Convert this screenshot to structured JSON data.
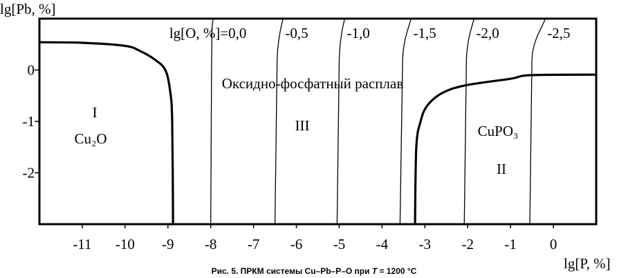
{
  "chart_data": {
    "type": "line",
    "title": "",
    "caption": {
      "prefix": "Рис. 5. ПРКМ системы Cu–Pb–P–O при ",
      "italic": "T",
      "suffix": " = 1200 °C"
    },
    "xlabel": "lg[P, %]",
    "ylabel": "lg[Pb, %]",
    "xlim": [
      -12,
      1
    ],
    "ylim": [
      -3,
      1
    ],
    "x_ticks": [
      -11,
      -10,
      -9,
      -8,
      -7,
      -6,
      -5,
      -4,
      -3,
      -2,
      -1,
      0
    ],
    "y_ticks": [
      0,
      -1,
      -2
    ],
    "grid": false,
    "phase_boundaries": [
      {
        "name": "Cu2O boundary",
        "points": [
          [
            -12,
            0.54
          ],
          [
            -11,
            0.53
          ],
          [
            -10,
            0.47
          ],
          [
            -9.65,
            0.37
          ],
          [
            -9.3,
            0.2
          ],
          [
            -9.06,
            0
          ],
          [
            -8.95,
            -0.4
          ],
          [
            -8.9,
            -1.0
          ],
          [
            -8.88,
            -3
          ]
        ]
      },
      {
        "name": "CuPO3 boundary",
        "points": [
          [
            -3.23,
            -3
          ],
          [
            -3.2,
            -1.5
          ],
          [
            -3.1,
            -1.0
          ],
          [
            -2.95,
            -0.7
          ],
          [
            -2.6,
            -0.45
          ],
          [
            -2.06,
            -0.3
          ],
          [
            -1.0,
            -0.17
          ],
          [
            -0.53,
            -0.1
          ],
          [
            1,
            -0.09
          ]
        ]
      }
    ],
    "iso_oxygen_lines": [
      {
        "label": "lg[O, %]=0,0",
        "x_bottom": -8.0,
        "x_mid": -7.98,
        "x_top": -7.94
      },
      {
        "label": "-0,5",
        "x_bottom": -6.5,
        "x_mid": -6.45,
        "x_top": -6.31
      },
      {
        "label": "-1,0",
        "x_bottom": -5.05,
        "x_mid": -5.0,
        "x_top": -4.87
      },
      {
        "label": "-1,5",
        "x_bottom": -3.58,
        "x_mid": -3.52,
        "x_top": -3.32
      },
      {
        "label": "-2,0",
        "x_bottom": -2.08,
        "x_mid": -2.03,
        "x_top": -1.85
      },
      {
        "label": "-2,5",
        "x_bottom": -0.55,
        "x_mid": -0.5,
        "x_top": -0.19
      }
    ],
    "region_labels": {
      "melt": "Оксидно-фосфатный расплав",
      "region1_num": "I",
      "region1_phase": "Cu₂O",
      "region3_num": "III",
      "region2_phase": "CuPO₃",
      "region2_num": "II"
    }
  }
}
